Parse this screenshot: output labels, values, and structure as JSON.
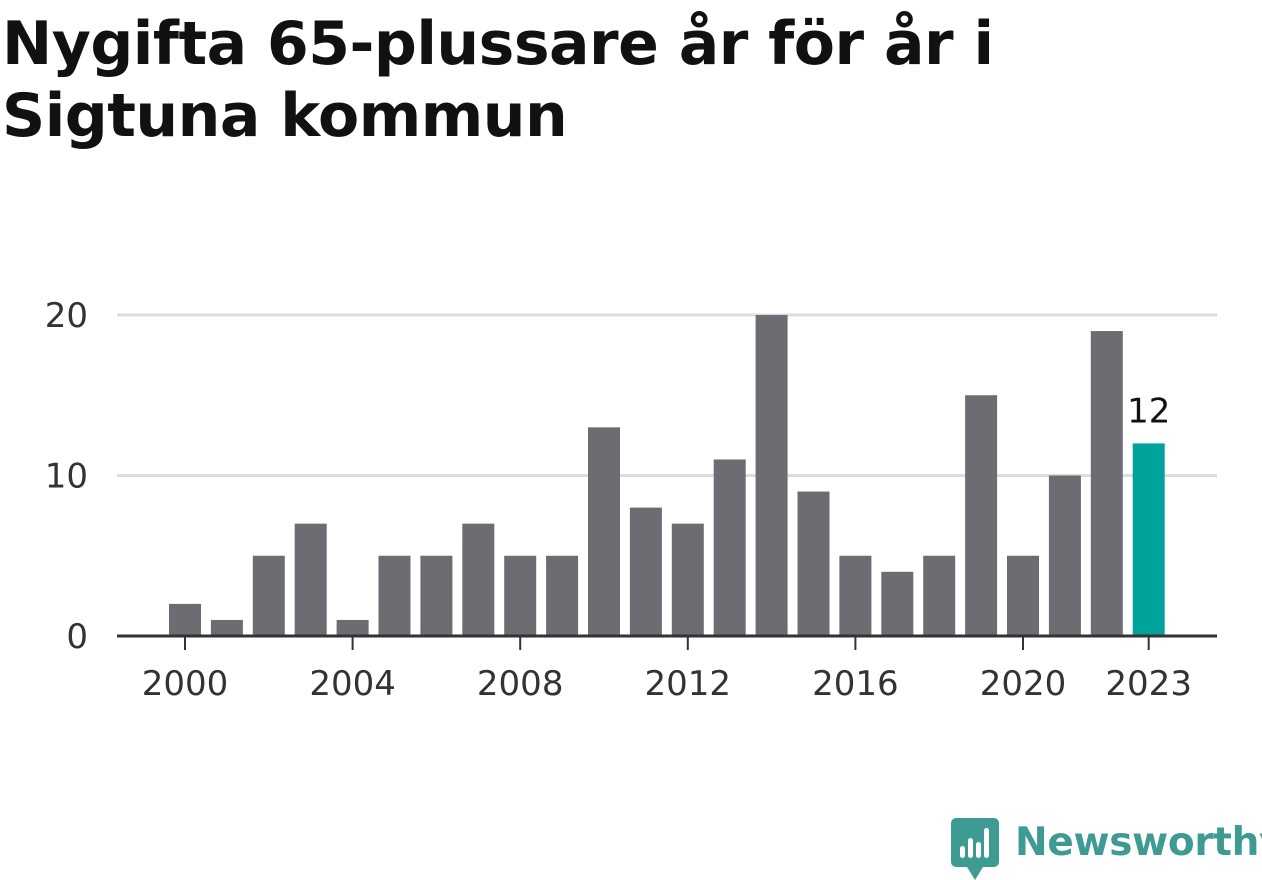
{
  "title": "Nygifta 65-plussare år för år i Sigtuna kommun",
  "chart_data": {
    "type": "bar",
    "title": "Nygifta 65-plussare år för år i Sigtuna kommun",
    "xlabel": "",
    "ylabel": "",
    "categories": [
      2000,
      2001,
      2002,
      2003,
      2004,
      2005,
      2006,
      2007,
      2008,
      2009,
      2010,
      2011,
      2012,
      2013,
      2014,
      2015,
      2016,
      2017,
      2018,
      2019,
      2020,
      2021,
      2022,
      2023
    ],
    "values": [
      2,
      1,
      5,
      7,
      1,
      5,
      5,
      7,
      5,
      5,
      13,
      8,
      7,
      11,
      20,
      9,
      5,
      4,
      5,
      15,
      5,
      10,
      19,
      12
    ],
    "ylim": [
      0,
      20
    ],
    "yticks": [
      0,
      10,
      20
    ],
    "xticks": [
      2000,
      2004,
      2008,
      2012,
      2016,
      2020,
      2023
    ],
    "grid": true,
    "highlight": {
      "category": 2023,
      "label": "12"
    },
    "colors": {
      "bar": "#6d6c72",
      "highlight": "#00a29b",
      "grid": "#dddddd",
      "axis": "#333333"
    }
  },
  "brand": {
    "name": "Newsworthy",
    "icon": "newsworthy-logo-icon",
    "color": "#3e9b93"
  }
}
